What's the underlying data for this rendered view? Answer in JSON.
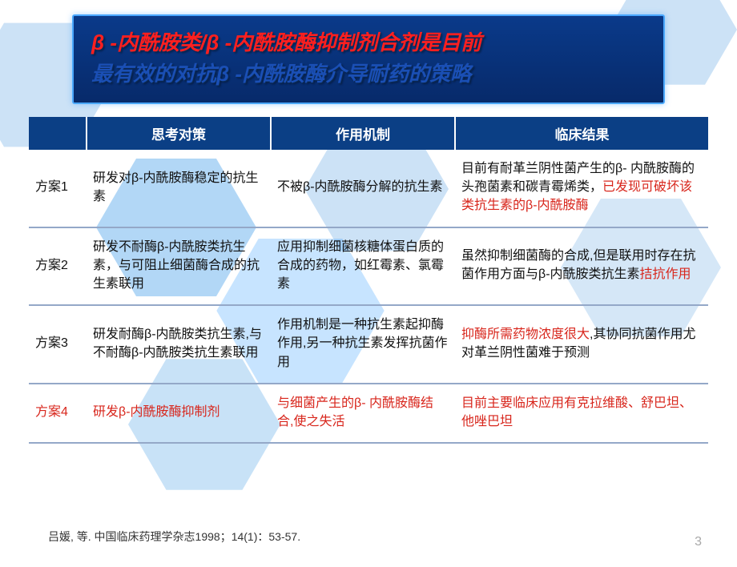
{
  "colors": {
    "title_bg_top": "#0a3a8a",
    "title_bg_bottom": "#072a6a",
    "title_border": "#4aa8ff",
    "title_line1_color": "#ff1f1f",
    "title_line2_color": "#1a4fb5",
    "header_bg": "#0b3f85",
    "header_text": "#ffffff",
    "row_border": "#94a8c8",
    "text_black": "#111111",
    "text_red": "#d8261c",
    "hex_fill": "#1e7ed8",
    "hex_edge": "#3aa0ff",
    "page_num_color": "#a8a8a8"
  },
  "title": {
    "line1": "β -内酰胺类/β -内酰胺酶抑制剂合剂是目前",
    "line2": "最有效的对抗β -内酰胺酶介导耐药的策略"
  },
  "headers": {
    "empty": "",
    "strategy": "思考对策",
    "mechanism": "作用机制",
    "result": "临床结果"
  },
  "rows": [
    {
      "label": "方案1",
      "label_red": false,
      "strategy": [
        {
          "t": "研发对β-内酰胺酶稳定的抗生素",
          "red": false
        }
      ],
      "mechanism": [
        {
          "t": "不被β-内酰胺酶分解的抗生素",
          "red": false
        }
      ],
      "result": [
        {
          "t": "目前有耐革兰阴性菌产生的β- 内酰胺酶的头孢菌素和碳青霉烯类，",
          "red": false
        },
        {
          "t": "已发现可破坏该类抗生素的β-内酰胺酶",
          "red": true
        }
      ]
    },
    {
      "label": "方案2",
      "label_red": false,
      "strategy": [
        {
          "t": "研发不耐酶β-内酰胺类抗生素，与可阻止细菌酶合成的抗生素联用",
          "red": false
        }
      ],
      "mechanism": [
        {
          "t": "应用抑制细菌核糖体蛋白质的合成的药物，如红霉素、氯霉素",
          "red": false
        }
      ],
      "result": [
        {
          "t": "虽然抑制细菌酶的合成,但是联用时存在抗菌作用方面与β-内酰胺类抗生素",
          "red": false
        },
        {
          "t": "拮抗作用",
          "red": true
        }
      ]
    },
    {
      "label": "方案3",
      "label_red": false,
      "strategy": [
        {
          "t": "研发耐酶β-内酰胺类抗生素,与不耐酶β-内酰胺类抗生素联用",
          "red": false
        }
      ],
      "mechanism": [
        {
          "t": "作用机制是一种抗生素起抑酶作用,另一种抗生素发挥抗菌作用",
          "red": false
        }
      ],
      "result": [
        {
          "t": "抑酶所需药物浓度很大",
          "red": true
        },
        {
          "t": ",其协同抗菌作用尤对革兰阴性菌难于预测",
          "red": false
        }
      ]
    },
    {
      "label": "方案4",
      "label_red": true,
      "strategy": [
        {
          "t": "研发β-内酰胺酶抑制剂",
          "red": true
        }
      ],
      "mechanism": [
        {
          "t": "与细菌产生的β- 内酰胺酶结合,使之失活",
          "red": true
        }
      ],
      "result": [
        {
          "t": "目前主要临床应用有克拉维酸、舒巴坦、他唑巴坦",
          "red": true
        }
      ]
    }
  ],
  "footnote": "吕媛, 等. 中国临床药理学杂志1998；14(1)：53-57.",
  "page_number": "3"
}
